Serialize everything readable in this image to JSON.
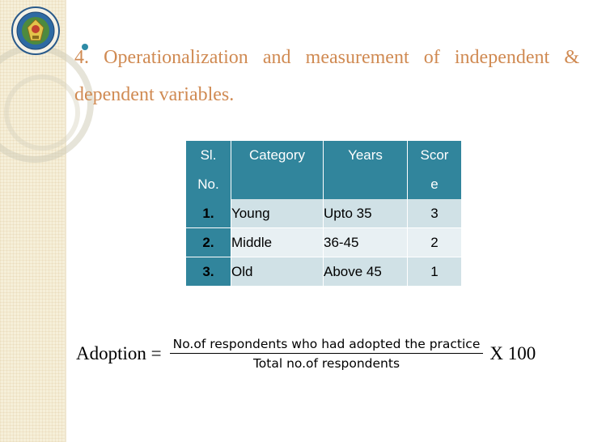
{
  "slide": {
    "title": "4. Operationalization and measurement of independent & dependent variables."
  },
  "table": {
    "headers": {
      "sl_line1": "Sl.",
      "sl_line2": "No.",
      "category": "Category",
      "years": "Years",
      "score_line1": "Scor",
      "score_line2": "e"
    },
    "rows": [
      {
        "sl": "1.",
        "category": "Young",
        "years": "Upto 35",
        "score": "3"
      },
      {
        "sl": "2.",
        "category": "Middle",
        "years": "36-45",
        "score": "2"
      },
      {
        "sl": "3.",
        "category": "Old",
        "years": "Above 45",
        "score": "1"
      }
    ]
  },
  "formula": {
    "lhs": "Adoption =",
    "numerator": "No.of respondents who had adopted the practice",
    "denominator": "Total no.of respondents",
    "rhs": "X 100"
  },
  "colors": {
    "title": "#d08a52",
    "table_header": "#31859c",
    "row_band_1": "#d0e1e6",
    "row_band_2": "#e8f0f3",
    "bullet": "#2e8ba6"
  },
  "icons": {
    "logo": "university-seal-logo"
  }
}
